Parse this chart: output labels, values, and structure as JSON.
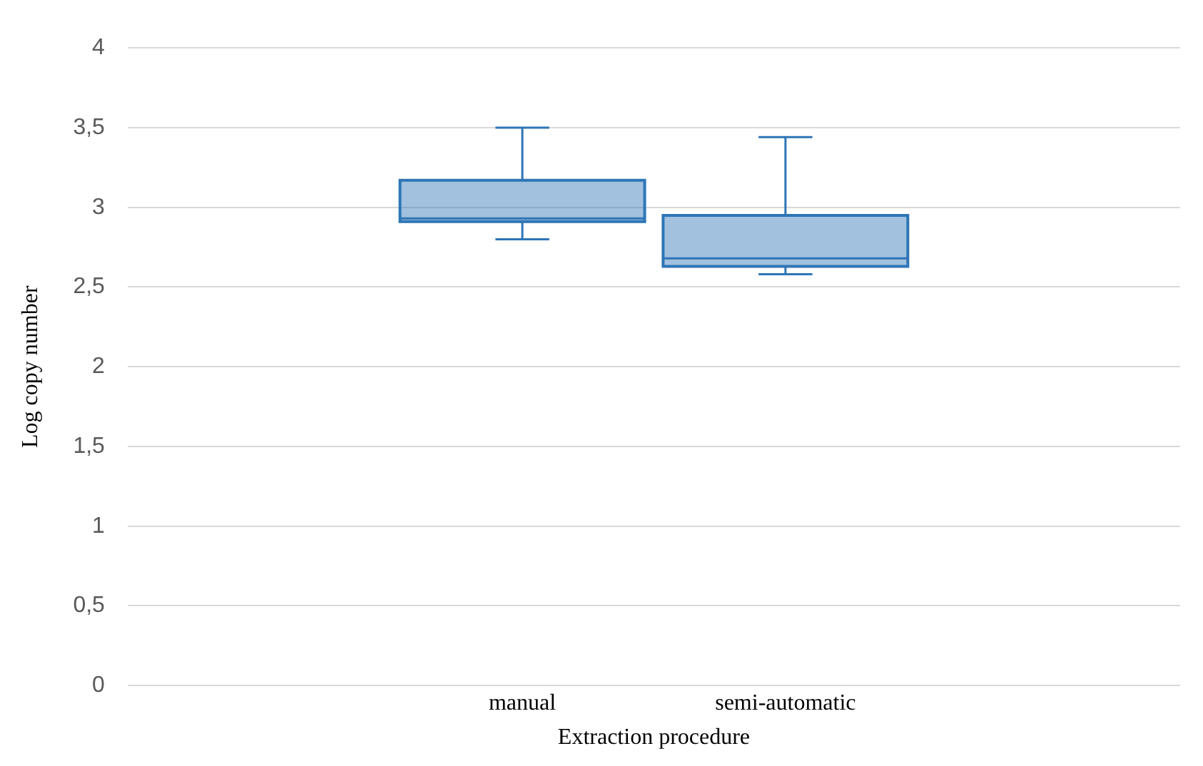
{
  "chart_data": {
    "type": "box",
    "xlabel": "Extraction procedure",
    "ylabel": "Log copy number",
    "categories": [
      "manual",
      "semi-automatic"
    ],
    "boxes": [
      {
        "low": 2.8,
        "q1": 2.91,
        "median": 2.93,
        "q3": 3.17,
        "high": 3.5
      },
      {
        "low": 2.58,
        "q1": 2.63,
        "median": 2.68,
        "q3": 2.95,
        "high": 3.44
      }
    ],
    "color": "#2e75b6",
    "ylim": [
      0,
      4
    ],
    "yticks": [
      0,
      {
        "value": 0.5,
        "label": "0,5"
      },
      1,
      {
        "value": 1.5,
        "label": "1,5"
      },
      2,
      {
        "value": 2.5,
        "label": "2,5"
      },
      3,
      {
        "value": 3.5,
        "label": "3,5"
      },
      4
    ],
    "grid": "y"
  }
}
